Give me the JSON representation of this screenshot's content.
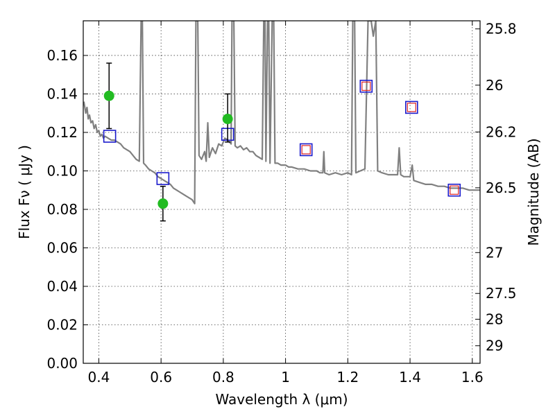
{
  "chart_data": {
    "type": "scatter",
    "title": "",
    "xlabel": "Wavelength  λ (μm)",
    "ylabel": "Flux  Fν  ( μJy )",
    "ylabel_right": "Magnitude (AB)",
    "xlim": [
      0.35,
      1.625
    ],
    "ylim": [
      0.0,
      0.178
    ],
    "grid": true,
    "x_ticks": [
      {
        "value": 0.4,
        "label": "0.4"
      },
      {
        "value": 0.6,
        "label": "0.6"
      },
      {
        "value": 0.8,
        "label": "0.8"
      },
      {
        "value": 1.0,
        "label": "1"
      },
      {
        "value": 1.2,
        "label": "1.2"
      },
      {
        "value": 1.4,
        "label": "1.4"
      },
      {
        "value": 1.6,
        "label": "1.6"
      }
    ],
    "y_ticks": [
      {
        "value": 0.0,
        "label": "0.00"
      },
      {
        "value": 0.02,
        "label": "0.02"
      },
      {
        "value": 0.04,
        "label": "0.04"
      },
      {
        "value": 0.06,
        "label": "0.06"
      },
      {
        "value": 0.08,
        "label": "0.08"
      },
      {
        "value": 0.1,
        "label": "0.10"
      },
      {
        "value": 0.12,
        "label": "0.12"
      },
      {
        "value": 0.14,
        "label": "0.14"
      },
      {
        "value": 0.16,
        "label": "0.16"
      }
    ],
    "right_ticks": [
      {
        "label": "25.8",
        "mag": 25.8
      },
      {
        "label": "26",
        "mag": 26.0
      },
      {
        "label": "26.2",
        "mag": 26.2
      },
      {
        "label": "26.5",
        "mag": 26.5
      },
      {
        "label": "27",
        "mag": 27.0
      },
      {
        "label": "27.5",
        "mag": 27.5
      },
      {
        "label": "28",
        "mag": 28.0
      },
      {
        "label": "29",
        "mag": 29.0
      }
    ],
    "observed": [
      {
        "x": 0.433,
        "y": 0.139,
        "yerr_low": 0.122,
        "yerr_high": 0.156
      },
      {
        "x": 0.606,
        "y": 0.083,
        "yerr_low": 0.074,
        "yerr_high": 0.092
      },
      {
        "x": 0.814,
        "y": 0.127,
        "yerr_low": 0.115,
        "yerr_high": 0.14
      }
    ],
    "model_photometry": [
      {
        "x": 0.435,
        "y": 0.118,
        "inner": false
      },
      {
        "x": 0.606,
        "y": 0.096,
        "inner": false
      },
      {
        "x": 0.814,
        "y": 0.119,
        "inner": false
      },
      {
        "x": 1.066,
        "y": 0.111,
        "inner": true
      },
      {
        "x": 1.259,
        "y": 0.144,
        "inner": true
      },
      {
        "x": 1.405,
        "y": 0.133,
        "inner": true
      },
      {
        "x": 1.542,
        "y": 0.09,
        "inner": true
      }
    ],
    "model_spectrum": [
      [
        0.352,
        0.136
      ],
      [
        0.358,
        0.13
      ],
      [
        0.362,
        0.133
      ],
      [
        0.366,
        0.127
      ],
      [
        0.37,
        0.129
      ],
      [
        0.375,
        0.125
      ],
      [
        0.38,
        0.126
      ],
      [
        0.385,
        0.122
      ],
      [
        0.39,
        0.124
      ],
      [
        0.395,
        0.12
      ],
      [
        0.4,
        0.121
      ],
      [
        0.405,
        0.118
      ],
      [
        0.41,
        0.119
      ],
      [
        0.415,
        0.117
      ],
      [
        0.42,
        0.118
      ],
      [
        0.43,
        0.117
      ],
      [
        0.44,
        0.116
      ],
      [
        0.45,
        0.116
      ],
      [
        0.46,
        0.115
      ],
      [
        0.47,
        0.114
      ],
      [
        0.48,
        0.112
      ],
      [
        0.49,
        0.111
      ],
      [
        0.5,
        0.11
      ],
      [
        0.51,
        0.108
      ],
      [
        0.52,
        0.106
      ],
      [
        0.53,
        0.105
      ],
      [
        0.536,
        0.178
      ],
      [
        0.54,
        0.178
      ],
      [
        0.544,
        0.104
      ],
      [
        0.55,
        0.103
      ],
      [
        0.56,
        0.101
      ],
      [
        0.57,
        0.1
      ],
      [
        0.58,
        0.099
      ],
      [
        0.59,
        0.097
      ],
      [
        0.6,
        0.096
      ],
      [
        0.61,
        0.095
      ],
      [
        0.62,
        0.094
      ],
      [
        0.63,
        0.093
      ],
      [
        0.64,
        0.091
      ],
      [
        0.65,
        0.09
      ],
      [
        0.66,
        0.089
      ],
      [
        0.67,
        0.088
      ],
      [
        0.68,
        0.087
      ],
      [
        0.69,
        0.086
      ],
      [
        0.7,
        0.085
      ],
      [
        0.708,
        0.083
      ],
      [
        0.712,
        0.178
      ],
      [
        0.718,
        0.178
      ],
      [
        0.722,
        0.108
      ],
      [
        0.73,
        0.106
      ],
      [
        0.74,
        0.11
      ],
      [
        0.745,
        0.105
      ],
      [
        0.75,
        0.125
      ],
      [
        0.755,
        0.107
      ],
      [
        0.765,
        0.112
      ],
      [
        0.775,
        0.109
      ],
      [
        0.785,
        0.114
      ],
      [
        0.795,
        0.113
      ],
      [
        0.805,
        0.117
      ],
      [
        0.815,
        0.116
      ],
      [
        0.825,
        0.114
      ],
      [
        0.828,
        0.178
      ],
      [
        0.834,
        0.178
      ],
      [
        0.838,
        0.113
      ],
      [
        0.845,
        0.112
      ],
      [
        0.855,
        0.113
      ],
      [
        0.865,
        0.111
      ],
      [
        0.875,
        0.112
      ],
      [
        0.885,
        0.11
      ],
      [
        0.895,
        0.11
      ],
      [
        0.905,
        0.108
      ],
      [
        0.915,
        0.107
      ],
      [
        0.925,
        0.106
      ],
      [
        0.93,
        0.178
      ],
      [
        0.934,
        0.178
      ],
      [
        0.937,
        0.105
      ],
      [
        0.942,
        0.178
      ],
      [
        0.946,
        0.178
      ],
      [
        0.95,
        0.104
      ],
      [
        0.957,
        0.178
      ],
      [
        0.962,
        0.178
      ],
      [
        0.966,
        0.104
      ],
      [
        0.975,
        0.104
      ],
      [
        0.985,
        0.103
      ],
      [
        1.0,
        0.103
      ],
      [
        1.01,
        0.102
      ],
      [
        1.02,
        0.102
      ],
      [
        1.04,
        0.101
      ],
      [
        1.06,
        0.101
      ],
      [
        1.08,
        0.1
      ],
      [
        1.1,
        0.1
      ],
      [
        1.11,
        0.099
      ],
      [
        1.12,
        0.099
      ],
      [
        1.123,
        0.11
      ],
      [
        1.126,
        0.099
      ],
      [
        1.14,
        0.098
      ],
      [
        1.16,
        0.099
      ],
      [
        1.18,
        0.098
      ],
      [
        1.2,
        0.099
      ],
      [
        1.212,
        0.098
      ],
      [
        1.216,
        0.178
      ],
      [
        1.222,
        0.178
      ],
      [
        1.226,
        0.099
      ],
      [
        1.24,
        0.1
      ],
      [
        1.255,
        0.101
      ],
      [
        1.265,
        0.178
      ],
      [
        1.275,
        0.178
      ],
      [
        1.282,
        0.17
      ],
      [
        1.29,
        0.178
      ],
      [
        1.296,
        0.1
      ],
      [
        1.31,
        0.099
      ],
      [
        1.33,
        0.098
      ],
      [
        1.35,
        0.098
      ],
      [
        1.36,
        0.098
      ],
      [
        1.365,
        0.112
      ],
      [
        1.37,
        0.098
      ],
      [
        1.38,
        0.097
      ],
      [
        1.39,
        0.097
      ],
      [
        1.4,
        0.097
      ],
      [
        1.407,
        0.103
      ],
      [
        1.412,
        0.095
      ],
      [
        1.43,
        0.094
      ],
      [
        1.45,
        0.093
      ],
      [
        1.47,
        0.093
      ],
      [
        1.49,
        0.092
      ],
      [
        1.51,
        0.092
      ],
      [
        1.53,
        0.091
      ],
      [
        1.55,
        0.091
      ],
      [
        1.57,
        0.091
      ],
      [
        1.59,
        0.09
      ],
      [
        1.61,
        0.09
      ],
      [
        1.625,
        0.09
      ]
    ]
  },
  "colors": {
    "observed": "#22bb22",
    "model_box": "#1a1acc",
    "model_inner": "#dd2222",
    "spectrum": "#808080",
    "errorbar": "#000000"
  }
}
